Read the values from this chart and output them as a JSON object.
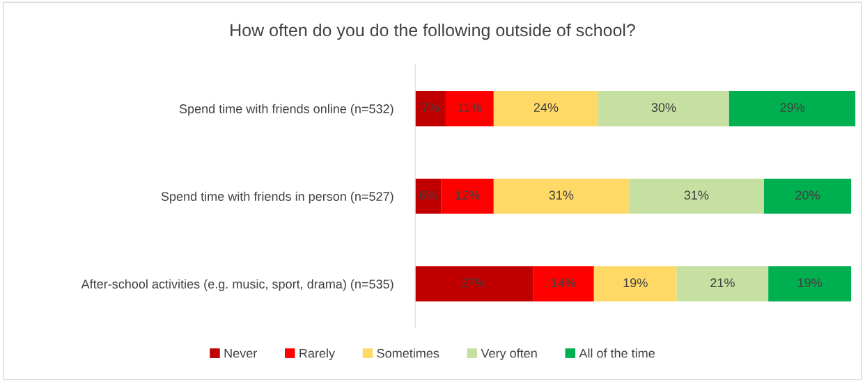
{
  "chart_data": {
    "type": "bar",
    "orientation": "horizontal",
    "stacked": true,
    "title": "How often do you do the following outside of school?",
    "categories": [
      "Spend time with friends online (n=532)",
      "Spend time with friends in person (n=527)",
      "After-school activities (e.g. music, sport, drama) (n=535)"
    ],
    "series": [
      {
        "name": "Never",
        "color": "#c00000",
        "values": [
          7,
          6,
          27
        ],
        "value_labels": [
          "7%",
          "6%",
          "27%"
        ]
      },
      {
        "name": "Rarely",
        "color": "#ff0000",
        "values": [
          11,
          12,
          14
        ],
        "value_labels": [
          "11%",
          "12%",
          "14%"
        ]
      },
      {
        "name": "Sometimes",
        "color": "#ffd966",
        "values": [
          24,
          31,
          19
        ],
        "value_labels": [
          "24%",
          "31%",
          "19%"
        ]
      },
      {
        "name": "Very often",
        "color": "#c5e0a0",
        "values": [
          30,
          31,
          21
        ],
        "value_labels": [
          "30%",
          "31%",
          "21%"
        ]
      },
      {
        "name": "All of the time",
        "color": "#00b050",
        "values": [
          29,
          20,
          19
        ],
        "value_labels": [
          "29%",
          "20%",
          "19%"
        ]
      }
    ],
    "legend": "bottom",
    "grid": false
  }
}
